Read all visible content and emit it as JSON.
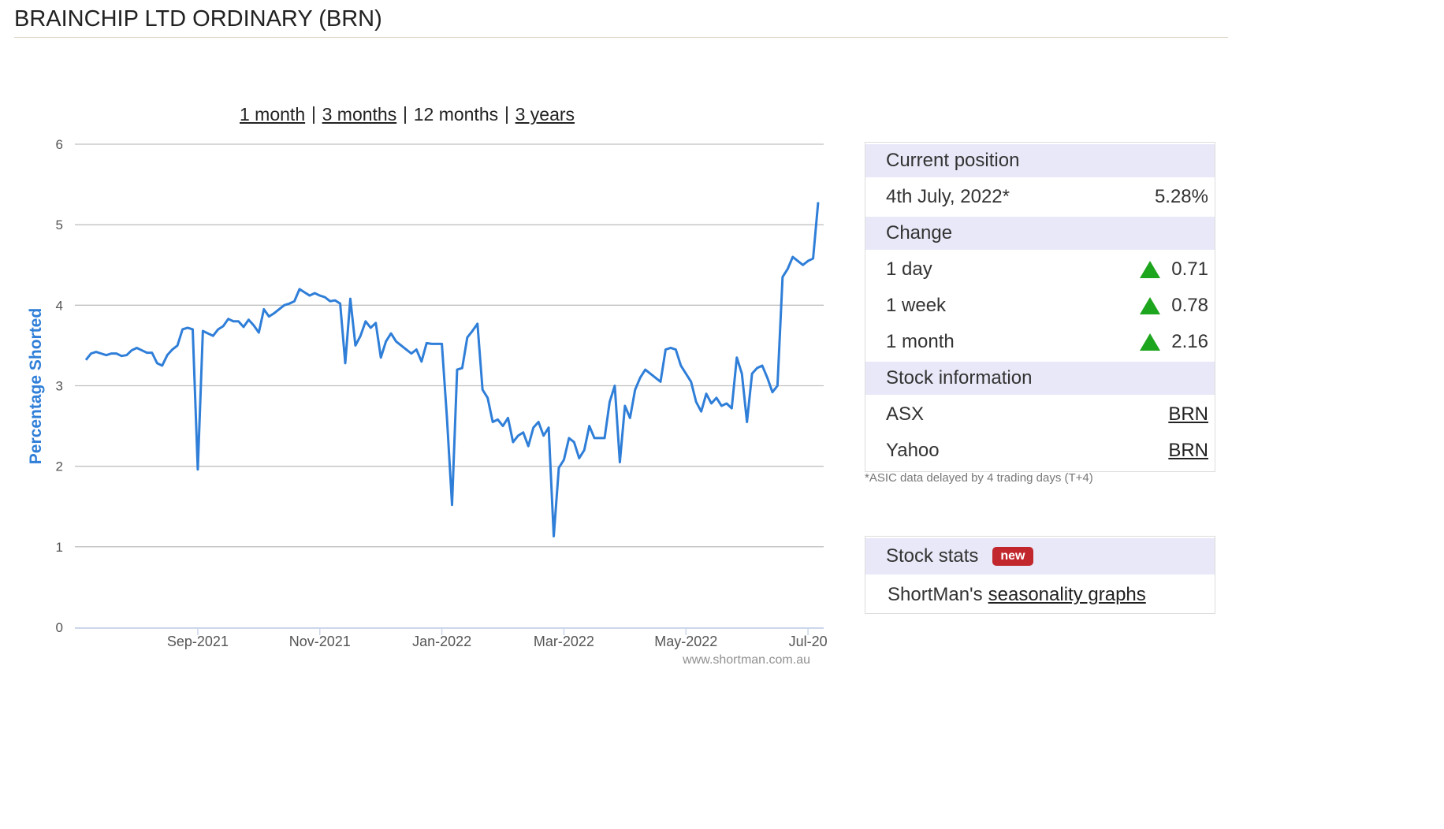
{
  "header": {
    "title": "BRAINCHIP LTD ORDINARY (BRN)"
  },
  "periods": {
    "links": [
      "1 month",
      "3 months"
    ],
    "current": "12 months",
    "last": "3 years"
  },
  "chart_data": {
    "type": "line",
    "y_label": "Percentage Shorted",
    "watermark": "www.shortman.com.au",
    "categories": [
      null,
      null,
      null,
      null,
      null,
      null,
      null,
      null,
      null,
      null,
      null,
      null,
      null,
      null,
      null,
      null,
      null,
      null,
      null,
      null,
      null,
      null,
      "Sep-2021",
      null,
      null,
      null,
      null,
      null,
      null,
      null,
      null,
      null,
      null,
      null,
      null,
      null,
      null,
      null,
      null,
      null,
      null,
      null,
      null,
      null,
      null,
      null,
      "Nov-2021",
      null,
      null,
      null,
      null,
      null,
      null,
      null,
      null,
      null,
      null,
      null,
      null,
      null,
      null,
      null,
      null,
      null,
      null,
      null,
      null,
      null,
      null,
      null,
      "Jan-2022",
      null,
      null,
      null,
      null,
      null,
      null,
      null,
      null,
      null,
      null,
      null,
      null,
      null,
      null,
      null,
      null,
      null,
      null,
      null,
      null,
      null,
      null,
      null,
      "Mar-2022",
      null,
      null,
      null,
      null,
      null,
      null,
      null,
      null,
      null,
      null,
      null,
      null,
      null,
      null,
      null,
      null,
      null,
      null,
      null,
      null,
      null,
      null,
      null,
      "May-2022",
      null,
      null,
      null,
      null,
      null,
      null,
      null,
      null,
      null,
      null,
      null,
      null,
      null,
      null,
      null,
      null,
      null,
      null,
      null,
      null,
      null,
      null,
      null,
      "Jul-20",
      null,
      null
    ],
    "series": [
      {
        "name": "Percentage Shorted",
        "color": "#2f7ed8",
        "values": [
          3.32,
          3.4,
          3.42,
          3.4,
          3.38,
          3.4,
          3.4,
          3.37,
          3.38,
          3.44,
          3.47,
          3.44,
          3.41,
          3.41,
          3.28,
          3.25,
          3.38,
          3.45,
          3.5,
          3.7,
          3.72,
          3.7,
          1.96,
          3.68,
          3.65,
          3.62,
          3.7,
          3.74,
          3.83,
          3.8,
          3.8,
          3.73,
          3.82,
          3.75,
          3.66,
          3.95,
          3.86,
          3.9,
          3.95,
          4.0,
          4.02,
          4.05,
          4.2,
          4.16,
          4.12,
          4.15,
          4.12,
          4.1,
          4.05,
          4.06,
          4.02,
          3.28,
          4.08,
          3.5,
          3.62,
          3.8,
          3.72,
          3.78,
          3.35,
          3.55,
          3.65,
          3.55,
          3.5,
          3.45,
          3.4,
          3.45,
          3.3,
          3.53,
          3.52,
          3.52,
          3.52,
          2.6,
          1.52,
          3.2,
          3.22,
          3.6,
          3.68,
          3.77,
          2.95,
          2.85,
          2.55,
          2.58,
          2.5,
          2.6,
          2.3,
          2.38,
          2.42,
          2.25,
          2.48,
          2.55,
          2.38,
          2.48,
          1.13,
          1.98,
          2.08,
          2.35,
          2.3,
          2.1,
          2.2,
          2.5,
          2.35,
          2.35,
          2.35,
          2.8,
          3.0,
          2.05,
          2.75,
          2.6,
          2.95,
          3.1,
          3.2,
          3.15,
          3.1,
          3.05,
          3.45,
          3.47,
          3.45,
          3.25,
          3.15,
          3.05,
          2.8,
          2.68,
          2.9,
          2.78,
          2.85,
          2.75,
          2.78,
          2.72,
          3.35,
          3.15,
          2.55,
          3.15,
          3.22,
          3.25,
          3.1,
          2.92,
          3.0,
          4.35,
          4.45,
          4.6,
          4.55,
          4.5,
          4.55,
          4.58,
          5.28
        ]
      }
    ],
    "ylim": [
      0,
      6
    ],
    "yticks": [
      0,
      1,
      2,
      3,
      4,
      5,
      6
    ],
    "grid": true
  },
  "position_table": {
    "sections": [
      {
        "heading": "Current position",
        "rows": [
          [
            "4th July, 2022*",
            "5.28%"
          ]
        ]
      },
      {
        "heading": "Change",
        "rows": [
          [
            "1 day",
            "0.71"
          ],
          [
            "1 week",
            "0.78"
          ],
          [
            "1 month",
            "2.16"
          ]
        ]
      },
      {
        "heading": "Stock information",
        "rows": [
          [
            "ASX",
            "BRN"
          ],
          [
            "Yahoo",
            "BRN"
          ]
        ]
      }
    ],
    "footnote": "*ASIC data delayed by 4 trading days (T+4)"
  },
  "stats_panel": {
    "heading": "Stock stats",
    "badge": "new",
    "text": "ShortMan's",
    "link": "seasonality graphs"
  }
}
